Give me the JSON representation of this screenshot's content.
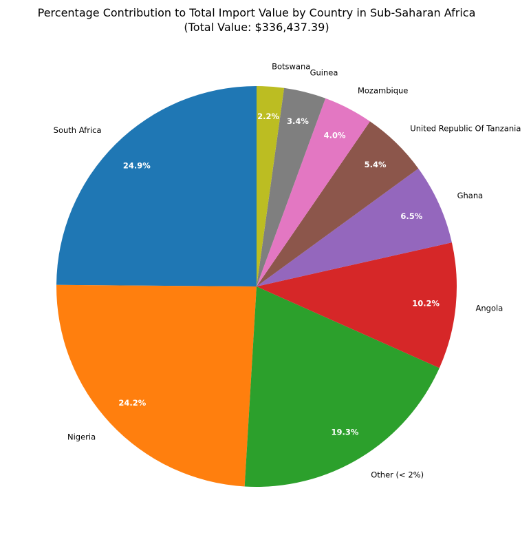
{
  "chart_data": {
    "type": "pie",
    "title": "Percentage Contribution to Total Import Value by Country in Sub-Saharan Africa",
    "subtitle": "(Total Value: $336,437.39)",
    "start_angle_deg": 90,
    "direction": "counterclockwise",
    "slices": [
      {
        "label": "South Africa",
        "value": 24.9,
        "pct_label": "24.9%",
        "color": "#1f77b4"
      },
      {
        "label": "Nigeria",
        "value": 24.2,
        "pct_label": "24.2%",
        "color": "#ff7f0e"
      },
      {
        "label": "Other (< 2%)",
        "value": 19.3,
        "pct_label": "19.3%",
        "color": "#2ca02c"
      },
      {
        "label": "Angola",
        "value": 10.2,
        "pct_label": "10.2%",
        "color": "#d62728"
      },
      {
        "label": "Ghana",
        "value": 6.5,
        "pct_label": "6.5%",
        "color": "#9467bd"
      },
      {
        "label": "United Republic Of Tanzania",
        "value": 5.4,
        "pct_label": "5.4%",
        "color": "#8c564b"
      },
      {
        "label": "Mozambique",
        "value": 4.0,
        "pct_label": "4.0%",
        "color": "#e377c2"
      },
      {
        "label": "Guinea",
        "value": 3.4,
        "pct_label": "3.4%",
        "color": "#7f7f7f"
      },
      {
        "label": "Botswana",
        "value": 2.2,
        "pct_label": "2.2%",
        "color": "#bcbd22"
      }
    ]
  }
}
